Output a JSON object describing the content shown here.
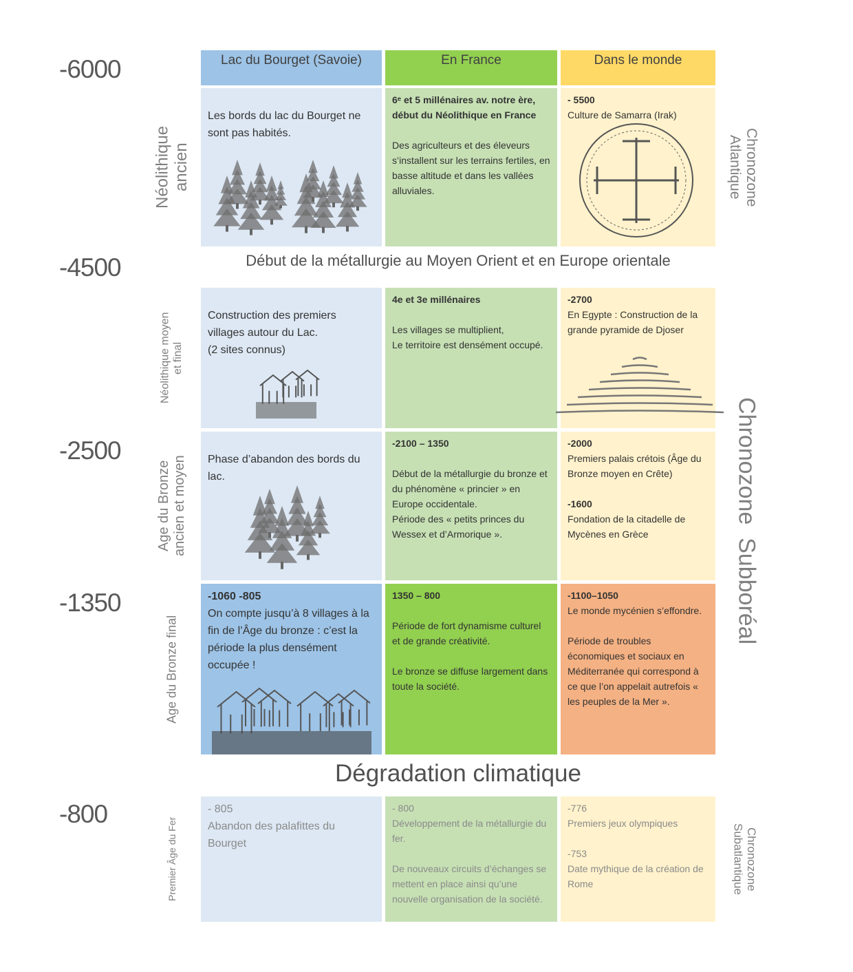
{
  "dates": [
    "-6000",
    "-4500",
    "-2500",
    "-1350",
    "-800"
  ],
  "headers": [
    "Lac du Bourget (Savoie)",
    "En France",
    "Dans le monde"
  ],
  "banners": [
    "Début de la métallurgie au Moyen Orient et en Europe orientale",
    "Dégradation climatique"
  ],
  "chronozones": [
    "Chronozone\nAtlantique",
    "Chronozone  Subboréal",
    "Chronozone\nSubatlantique"
  ],
  "rows": [
    {
      "period": "Néolithique\nancien",
      "cells": [
        [
          {
            "text": "Les bords du lac du Bourget ne sont pas habités."
          }
        ],
        [
          {
            "heading": "6ᵉ et 5 millénaires av. notre ère, début du Néolithique en France"
          },
          {
            "text": "Des agriculteurs et des éleveurs s’installent sur les terrains fertiles, en basse altitude et dans les vallées alluviales."
          }
        ],
        [
          {
            "heading": "- 5500",
            "text": "Culture de Samarra (Irak)"
          }
        ]
      ]
    },
    {
      "period": "Néolithique moyen\net final",
      "cells": [
        [
          {
            "text": "Construction des premiers villages autour du Lac.\n(2 sites connus)"
          }
        ],
        [
          {
            "heading": " 4e et 3e millénaires"
          },
          {
            "text": "Les villages se multiplient,\nLe territoire est densément occupé."
          }
        ],
        [
          {
            "heading": "-2700",
            "text": "En Egypte : Construction de la grande pyramide de Djoser"
          }
        ]
      ]
    },
    {
      "period": "Age du Bronze\nancien et moyen",
      "cells": [
        [
          {
            "text": "Phase d’abandon des bords du lac."
          }
        ],
        [
          {
            "heading": "-2100 – 1350"
          },
          {
            "text": "Début de la métallurgie du bronze et du phénomène « princier » en Europe occidentale.\nPériode des « petits princes du Wessex et d’Armorique »."
          }
        ],
        [
          {
            "heading": "-2000",
            "text": "Premiers palais crétois (Âge du Bronze moyen en Crête)"
          },
          {
            "heading": "-1600",
            "text": "Fondation de la citadelle de Mycènes en Grèce"
          }
        ]
      ]
    },
    {
      "period": "Age du Bronze final",
      "cells": [
        [
          {
            "heading": "-1060 -805",
            "text": "On compte jusqu’à 8 villages à la fin de l’Âge du bronze : c’est la période la plus densément occupée !"
          }
        ],
        [
          {
            "heading": "1350 – 800"
          },
          {
            "text": "Période de fort dynamisme culturel et de grande créativité."
          },
          {
            "text": "Le bronze se diffuse largement dans toute la société."
          }
        ],
        [
          {
            "heading": "-1100–1050",
            "text": "Le monde mycénien s’effondre."
          },
          {
            "text": "Période de troubles économiques et sociaux en Méditerranée qui correspond à ce que l’on appelait autrefois « les peuples de la Mer »."
          }
        ]
      ]
    },
    {
      "period": "Premier Âge du Fer",
      "cells": [
        [
          {
            "heading": "- 805",
            "text": "Abandon des palafittes du Bourget"
          }
        ],
        [
          {
            "heading": "- 800",
            "text": "Développement de la métallurgie du fer."
          },
          {
            "text": "De nouveaux circuits d’échanges se mettent en place ainsi qu’une nouvelle organisation de la société."
          }
        ],
        [
          {
            "heading": "-776",
            "text": "Premiers jeux olympiques"
          },
          {
            "heading": "-753",
            "text": "Date mythique de la création de Rome"
          }
        ]
      ]
    }
  ]
}
